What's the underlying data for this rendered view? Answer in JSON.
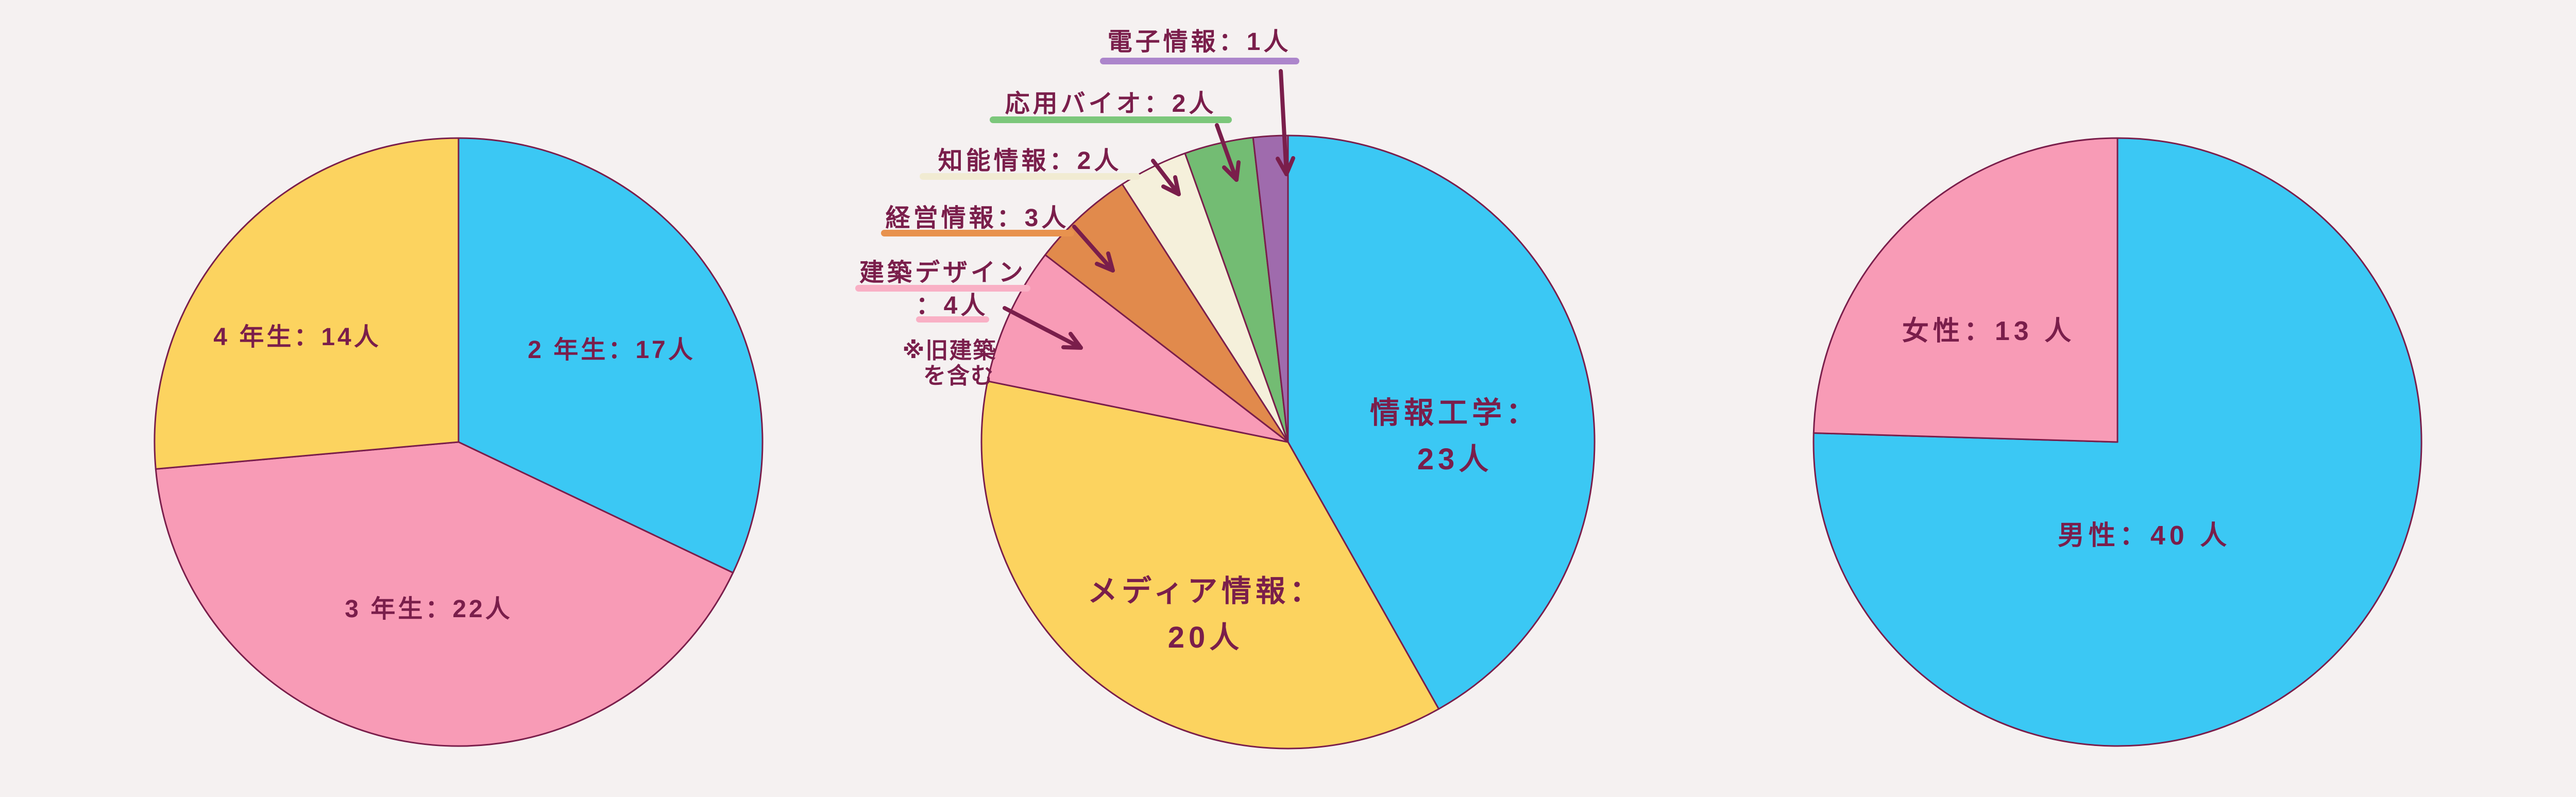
{
  "style": {
    "background": "#F5F1F1",
    "outline_color": "#7A1E4B",
    "text_color": "#7A1E4B",
    "arrow_color": "#7A1E4B"
  },
  "chart_data": [
    {
      "type": "pie",
      "title": "",
      "categories": [
        "2年生",
        "3年生",
        "4年生"
      ],
      "values": [
        17,
        22,
        14
      ],
      "colors": [
        "#3BC8F4",
        "#F89BB6",
        "#FCD35F"
      ],
      "labels": [
        "2 年生：17人",
        "3 年生：22人",
        "4 年生：14人"
      ],
      "start_angle": "top",
      "direction": "clockwise",
      "legend": "none"
    },
    {
      "type": "pie",
      "title": "",
      "categories": [
        "情報工学",
        "メディア情報",
        "建築デザイン",
        "経営情報",
        "知能情報",
        "応用バイオ",
        "電子情報"
      ],
      "values": [
        23,
        20,
        4,
        3,
        2,
        2,
        1
      ],
      "colors": [
        "#3BC8F4",
        "#FCD35F",
        "#F89BB6",
        "#E18A4C",
        "#F5F0DB",
        "#73BC73",
        "#9F6BAD"
      ],
      "inner_labels": [
        {
          "line1": "情報工学：",
          "line2": "23人"
        },
        {
          "line1": "メディア情報：",
          "line2": "20人"
        }
      ],
      "callouts": [
        {
          "text": "電子情報：1人",
          "underline_color": "#AC85CB"
        },
        {
          "text": "応用バイオ：2人",
          "underline_color": "#7CC77B"
        },
        {
          "text": "知能情報：2人",
          "underline_color": "#F1EBD2"
        },
        {
          "text": "経営情報：3人",
          "underline_color": "#E8924E"
        },
        {
          "text": "建築デザイン",
          "underline_color": "#F9B0C5"
        },
        {
          "text": "：4人",
          "underline_color": "#F9B0C5"
        }
      ],
      "note": {
        "line1": "※旧建築",
        "line2": "を含む"
      },
      "start_angle": "top",
      "direction": "clockwise",
      "legend": "none"
    },
    {
      "type": "pie",
      "title": "",
      "categories": [
        "男性",
        "女性"
      ],
      "values": [
        40,
        13
      ],
      "colors": [
        "#3BC8F4",
        "#F89BB6"
      ],
      "labels": [
        "男性：40 人",
        "女性：13 人"
      ],
      "start_angle": "top",
      "direction": "clockwise",
      "legend": "none"
    }
  ]
}
